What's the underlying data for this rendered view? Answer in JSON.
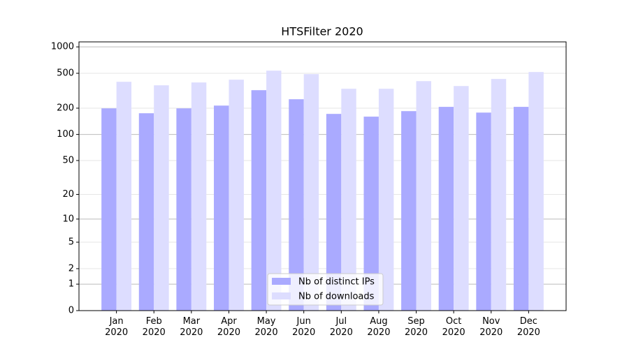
{
  "chart_data": {
    "type": "bar",
    "title": "HTSFilter 2020",
    "categories": [
      "Jan\n2020",
      "Feb\n2020",
      "Mar\n2020",
      "Apr\n2020",
      "May\n2020",
      "Jun\n2020",
      "Jul\n2020",
      "Aug\n2020",
      "Sep\n2020",
      "Oct\n2020",
      "Nov\n2020",
      "Dec\n2020"
    ],
    "series": [
      {
        "name": "Nb of distinct IPs",
        "color": "#aaaaff",
        "values": [
          199,
          175,
          199,
          214,
          321,
          253,
          172,
          160,
          185,
          207,
          178,
          207
        ]
      },
      {
        "name": "Nb of downloads",
        "color": "#ddddff",
        "values": [
          400,
          365,
          393,
          423,
          536,
          489,
          333,
          333,
          407,
          358,
          431,
          517
        ]
      }
    ],
    "yscale": "log1p",
    "ylim": [
      0,
      1140
    ],
    "yticks": [
      0,
      1,
      2,
      5,
      10,
      20,
      50,
      100,
      200,
      500,
      1000
    ],
    "grid": true,
    "legend": "lower center"
  }
}
